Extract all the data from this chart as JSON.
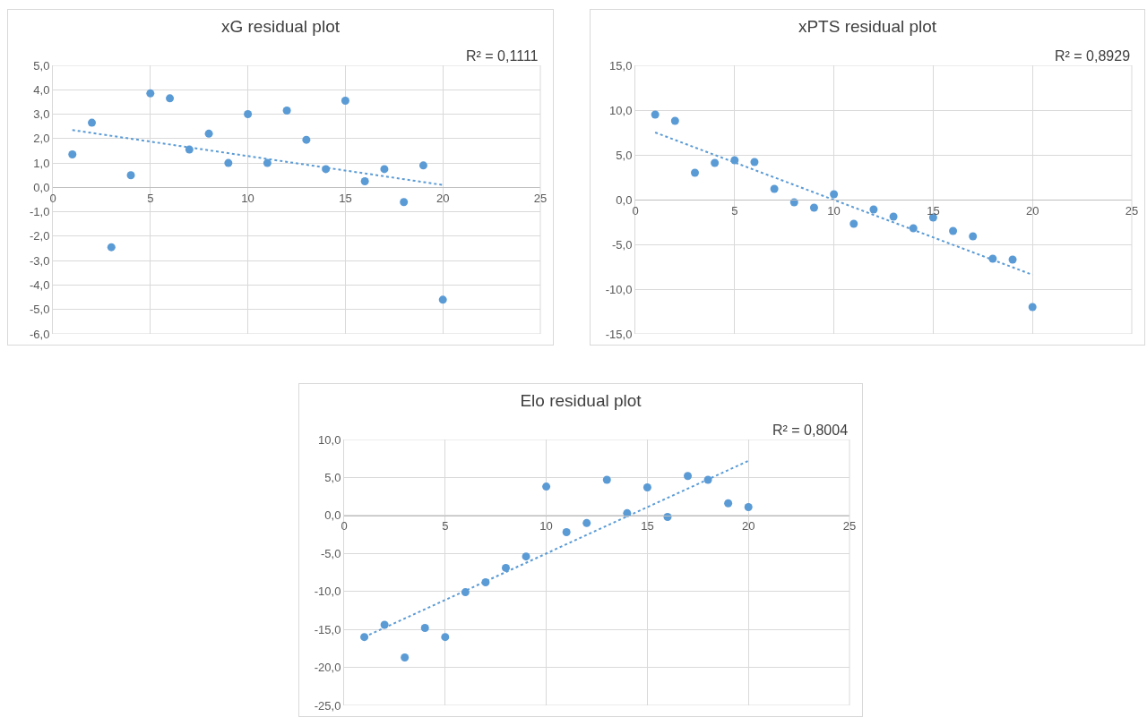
{
  "chart_data": [
    {
      "type": "scatter",
      "title": "xG residual plot",
      "annotations": [
        "R² = 0,1111"
      ],
      "grid": true,
      "xlim": [
        0,
        25
      ],
      "xticks": [
        0,
        5,
        10,
        15,
        20,
        25
      ],
      "ylim": [
        -6,
        5
      ],
      "yticks": [
        {
          "value": -6,
          "label": "-6,0"
        },
        {
          "value": -5,
          "label": "-5,0"
        },
        {
          "value": -4,
          "label": "-4,0"
        },
        {
          "value": -3,
          "label": "-3,0"
        },
        {
          "value": -2,
          "label": "-2,0"
        },
        {
          "value": -1,
          "label": "-1,0"
        },
        {
          "value": 0,
          "label": "0,0"
        },
        {
          "value": 1,
          "label": "1,0"
        },
        {
          "value": 2,
          "label": "2,0"
        },
        {
          "value": 3,
          "label": "3,0"
        },
        {
          "value": 4,
          "label": "4,0"
        },
        {
          "value": 5,
          "label": "5,0"
        }
      ],
      "series": [
        {
          "marker": "circle",
          "color": "#5b9bd5",
          "x": [
            1,
            2,
            3,
            4,
            5,
            6,
            7,
            8,
            9,
            10,
            11,
            12,
            13,
            14,
            15,
            16,
            17,
            18,
            19,
            20
          ],
          "values": [
            1.35,
            2.65,
            -2.45,
            0.5,
            3.85,
            3.65,
            1.55,
            2.2,
            1.0,
            3.0,
            1.0,
            3.15,
            1.95,
            0.75,
            3.55,
            0.25,
            0.75,
            -0.6,
            0.9,
            -4.6
          ]
        },
        {
          "type": "line",
          "color": "#5b9bd5",
          "line_style": "dotted",
          "x": [
            1,
            20
          ],
          "values": [
            2.35,
            0.1
          ]
        }
      ]
    },
    {
      "type": "scatter",
      "title": "xPTS residual plot",
      "annotations": [
        "R² = 0,8929"
      ],
      "grid": true,
      "xlim": [
        0,
        25
      ],
      "xticks": [
        0,
        5,
        10,
        15,
        20,
        25
      ],
      "ylim": [
        -15,
        15
      ],
      "yticks": [
        {
          "value": -15,
          "label": "-15,0"
        },
        {
          "value": -10,
          "label": "-10,0"
        },
        {
          "value": -5,
          "label": "-5,0"
        },
        {
          "value": 0,
          "label": "0,0"
        },
        {
          "value": 5,
          "label": "5,0"
        },
        {
          "value": 10,
          "label": "10,0"
        },
        {
          "value": 15,
          "label": "15,0"
        }
      ],
      "series": [
        {
          "marker": "circle",
          "color": "#5b9bd5",
          "x": [
            1,
            2,
            3,
            4,
            5,
            6,
            7,
            8,
            9,
            10,
            11,
            12,
            13,
            14,
            15,
            16,
            17,
            18,
            19,
            20
          ],
          "values": [
            9.5,
            8.8,
            3.0,
            4.1,
            4.4,
            4.2,
            1.2,
            -0.3,
            -0.9,
            0.6,
            -2.7,
            -1.1,
            -1.9,
            -3.2,
            -2.0,
            -3.5,
            -4.1,
            -6.6,
            -6.7,
            -12.0
          ]
        },
        {
          "type": "line",
          "color": "#5b9bd5",
          "line_style": "dotted",
          "x": [
            1,
            20
          ],
          "values": [
            7.5,
            -8.4
          ]
        }
      ]
    },
    {
      "type": "scatter",
      "title": "Elo residual plot",
      "annotations": [
        "R² = 0,8004"
      ],
      "grid": true,
      "xlim": [
        0,
        25
      ],
      "xticks": [
        0,
        5,
        10,
        15,
        20,
        25
      ],
      "ylim": [
        -25,
        10
      ],
      "yticks": [
        {
          "value": -25,
          "label": "-25,0"
        },
        {
          "value": -20,
          "label": "-20,0"
        },
        {
          "value": -15,
          "label": "-15,0"
        },
        {
          "value": -10,
          "label": "-10,0"
        },
        {
          "value": -5,
          "label": "-5,0"
        },
        {
          "value": 0,
          "label": "0,0"
        },
        {
          "value": 5,
          "label": "5,0"
        },
        {
          "value": 10,
          "label": "10,0"
        }
      ],
      "series": [
        {
          "marker": "circle",
          "color": "#5b9bd5",
          "x": [
            1,
            2,
            3,
            4,
            5,
            6,
            7,
            8,
            9,
            10,
            11,
            12,
            13,
            14,
            15,
            16,
            17,
            18,
            19,
            20
          ],
          "values": [
            -16.0,
            -14.4,
            -18.7,
            -14.8,
            -16.0,
            -10.1,
            -8.8,
            -6.9,
            -5.4,
            3.8,
            -2.2,
            -1.0,
            4.7,
            0.3,
            3.7,
            -0.2,
            5.2,
            4.7,
            1.6,
            1.1
          ]
        },
        {
          "type": "line",
          "color": "#5b9bd5",
          "line_style": "dotted",
          "x": [
            1,
            20
          ],
          "values": [
            -16.0,
            7.2
          ]
        }
      ]
    }
  ]
}
